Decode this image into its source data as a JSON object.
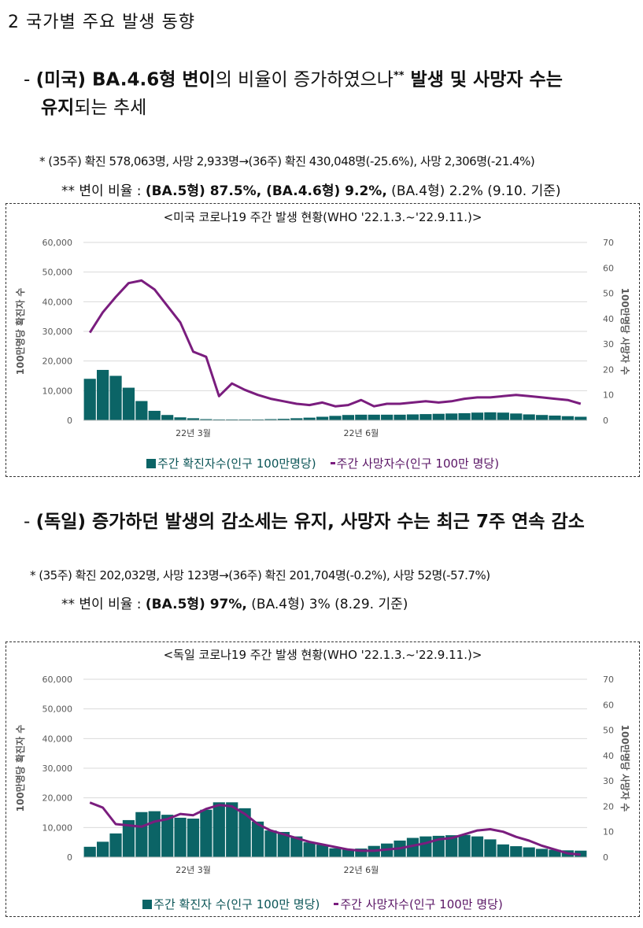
{
  "section_title": "2 국가별 주요 발생 동향",
  "usa": {
    "bullet_dash": "- ",
    "bullet_line1_a": "(미국) BA.4.6형 변이",
    "bullet_line1_b": "의 비율이 증가하였으나",
    "bullet_sup": "**",
    "bullet_line1_c": " 발생 및 사망자 수는",
    "bullet_line2_a": "유지",
    "bullet_line2_b": "되는 추세",
    "note1": "* (35주) 확진 578,063명, 사망 2,933명→(36주) 확진 430,048명(-25.6%), 사망 2,306명(-21.4%)",
    "note2_a": "** 변이 비율 : ",
    "note2_b": "(BA.5형) 87.5%, (BA.4.6형) 9.2%,",
    "note2_c": " (BA.4형) 2.2% (9.10. 기준)",
    "chart_title": "<미국 코로나19 주간 발생 현황(WHO '22.1.3.~'22.9.11.)>",
    "legend_bar": "주간 확진자수(인구 100만명당)",
    "legend_line": "주간 사망자수(인구 100만 명당)"
  },
  "germany": {
    "bullet_dash": "- ",
    "bullet_line1": "(독일) 증가하던 발생의 감소세는 유지, 사망자 수는 최근 7주 연속 감소",
    "note1": "* (35주) 확진 202,032명, 사망 123명→(36주) 확진 201,704명(-0.2%), 사망 52명(-57.7%)",
    "note2_a": "** 변이 비율 : ",
    "note2_b": "(BA.5형) 97%,",
    "note2_c": " (BA.4형) 3% (8.29. 기준)",
    "chart_title": "<독일 코로나19 주간 발생 현황(WHO '22.1.3.~'22.9.11.)>",
    "legend_bar": "주간 확진자 수(인구 100만 명당)",
    "legend_line": "주간 사망자수(인구 100만 명당)"
  },
  "colors": {
    "bar": "#0b6466",
    "line": "#7a1d7e",
    "grid": "#d9d9d9"
  },
  "chart_data": [
    {
      "type": "bar+line",
      "title": "미국 코로나19 주간 발생 현황",
      "ylabel": "100만명당 확진자 수",
      "y2label": "100만명당 사망자 수",
      "ylim": [
        0,
        60000
      ],
      "y2lim": [
        0,
        70
      ],
      "yticks": [
        "0",
        "10,000",
        "20,000",
        "30,000",
        "40,000",
        "50,000",
        "60,000"
      ],
      "y2ticks": [
        "0",
        "10",
        "20",
        "30",
        "40",
        "50",
        "60",
        "70"
      ],
      "x_labels": [
        {
          "index": 8,
          "label": "22년 3월"
        },
        {
          "index": 21,
          "label": "22년 6월"
        }
      ],
      "series": [
        {
          "name": "주간 확진자수(인구 100만명당)",
          "kind": "bar",
          "values": [
            14000,
            17000,
            15000,
            11000,
            6500,
            3200,
            1800,
            1000,
            700,
            400,
            300,
            300,
            300,
            300,
            400,
            500,
            700,
            900,
            1200,
            1500,
            1800,
            1900,
            1900,
            1900,
            1900,
            2000,
            2100,
            2200,
            2300,
            2400,
            2600,
            2700,
            2600,
            2300,
            2000,
            1800,
            1600,
            1400,
            1200
          ]
        },
        {
          "name": "주간 사망자수(인구 100만 명당)",
          "kind": "line",
          "values": [
            34.5,
            42.5,
            48.5,
            54,
            55,
            51.5,
            45,
            38.5,
            27,
            25,
            9.5,
            14.5,
            12,
            10,
            8.5,
            7.5,
            6.5,
            6,
            7,
            5.5,
            6,
            8,
            5.5,
            6.5,
            6.5,
            7,
            7.5,
            7,
            7.5,
            8.5,
            9,
            9,
            9.5,
            10,
            9.5,
            9,
            8.5,
            8,
            6.5
          ]
        }
      ]
    },
    {
      "type": "bar+line",
      "title": "독일 코로나19 주간 발생 현황",
      "ylabel": "100만명당 확진자 수",
      "y2label": "100만명당 사망자 수",
      "ylim": [
        0,
        60000
      ],
      "y2lim": [
        0,
        70
      ],
      "yticks": [
        "0",
        "10,000",
        "20,000",
        "30,000",
        "40,000",
        "50,000",
        "60,000"
      ],
      "y2ticks": [
        "0",
        "10",
        "20",
        "30",
        "40",
        "50",
        "60",
        "70"
      ],
      "x_labels": [
        {
          "index": 8,
          "label": "22년 3월"
        },
        {
          "index": 21,
          "label": "22년 6월"
        }
      ],
      "series": [
        {
          "name": "주간 확진자 수(인구 100만 명당)",
          "kind": "bar",
          "values": [
            3500,
            5200,
            8000,
            12500,
            15200,
            15500,
            14300,
            13300,
            13000,
            16000,
            18500,
            18500,
            16500,
            12000,
            9000,
            8500,
            7000,
            5000,
            4200,
            3000,
            2600,
            2900,
            3800,
            4600,
            5600,
            6500,
            7000,
            7200,
            7400,
            7500,
            7000,
            6000,
            4300,
            3700,
            3300,
            2800,
            2500,
            2300,
            2200
          ]
        },
        {
          "name": "주간 사망자수(인구 100만 명당)",
          "kind": "line",
          "values": [
            21.5,
            19.5,
            13,
            12.5,
            12,
            14,
            15,
            17,
            16.5,
            19,
            20.5,
            20,
            17,
            13,
            10.5,
            9,
            7.5,
            6,
            5,
            4,
            3,
            2.5,
            2.5,
            3,
            3.5,
            4.5,
            5.5,
            7,
            7.5,
            9,
            10.5,
            11,
            10,
            8,
            6.5,
            4.5,
            3,
            1.5,
            1
          ]
        }
      ]
    }
  ]
}
